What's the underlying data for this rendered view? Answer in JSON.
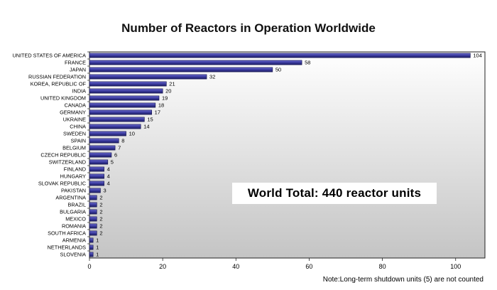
{
  "chart_data": {
    "type": "bar",
    "orientation": "horizontal",
    "title": "Number of Reactors in Operation Worldwide",
    "xlabel": "",
    "ylabel": "",
    "xlim": [
      0,
      108
    ],
    "xticks": [
      0,
      20,
      40,
      60,
      80,
      100
    ],
    "grid": false,
    "legend": "none",
    "bar_color": "#3b3b9e",
    "categories": [
      "UNITED STATES OF AMERICA",
      "FRANCE",
      "JAPAN",
      "RUSSIAN FEDERATION",
      "KOREA, REPUBLIC OF",
      "INDIA",
      "UNITED KINGDOM",
      "CANADA",
      "GERMANY",
      "UKRAINE",
      "CHINA",
      "SWEDEN",
      "SPAIN",
      "BELGIUM",
      "CZECH REPUBLIC",
      "SWITZERLAND",
      "FINLAND",
      "HUNGARY",
      "SLOVAK REPUBLIC",
      "PAKISTAN",
      "ARGENTINA",
      "BRAZIL",
      "BULGARIA",
      "MEXICO",
      "ROMANIA",
      "SOUTH AFRICA",
      "ARMENIA",
      "NETHERLANDS",
      "SLOVENIA"
    ],
    "values": [
      104,
      58,
      50,
      32,
      21,
      20,
      19,
      18,
      17,
      15,
      14,
      10,
      8,
      7,
      6,
      5,
      4,
      4,
      4,
      3,
      2,
      2,
      2,
      2,
      2,
      2,
      1,
      1,
      1
    ]
  },
  "annotation": {
    "total": "World Total:  440 reactor units"
  },
  "note": "Note:Long-term  shutdown units (5) are not counted"
}
